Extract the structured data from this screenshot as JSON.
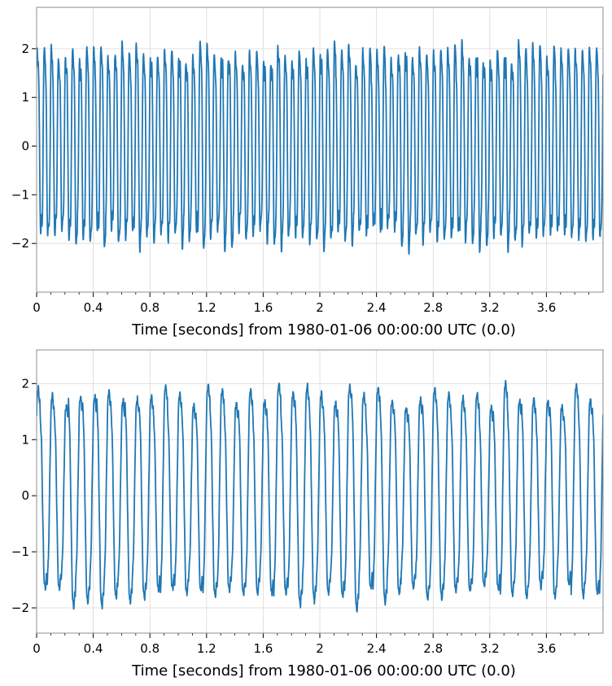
{
  "chart_data": [
    {
      "type": "line",
      "xlabel": "Time [seconds] from 1980-01-06 00:00:00 UTC (0.0)",
      "ylabel": "",
      "xlim": [
        0,
        4
      ],
      "ylim": [
        -3.0,
        2.85
      ],
      "x_ticks": [
        "0",
        "0.4",
        "0.8",
        "1.2",
        "1.6",
        "2",
        "2.4",
        "2.8",
        "3.2",
        "3.6"
      ],
      "y_ticks": [
        "−2",
        "−1",
        "0",
        "1",
        "2"
      ],
      "grid": true,
      "series": [
        {
          "color": "#1f77b4",
          "signal": {
            "main_frequency_hz": 20,
            "main_amplitude": 2.0,
            "harmonic_frequency_hz": 60,
            "harmonic_amplitude": 0.35,
            "peak_range": [
              1.8,
              2.6
            ],
            "trough_range": [
              -2.7,
              -1.6
            ]
          }
        }
      ]
    },
    {
      "type": "line",
      "xlabel": "Time [seconds] from 1980-01-06 00:00:00 UTC (0.0)",
      "ylabel": "",
      "xlim": [
        0,
        4
      ],
      "ylim": [
        -2.45,
        2.6
      ],
      "x_ticks": [
        "0",
        "0.4",
        "0.8",
        "1.2",
        "1.6",
        "2",
        "2.4",
        "2.8",
        "3.2",
        "3.6"
      ],
      "y_ticks": [
        "−2",
        "−1",
        "0",
        "1",
        "2"
      ],
      "grid": true,
      "series": [
        {
          "color": "#1f77b4",
          "signal": {
            "main_frequency_hz": 10,
            "main_amplitude": 1.9,
            "harmonic_frequency_hz": 30,
            "harmonic_amplitude": 0.25,
            "peak_range": [
              1.7,
              2.35
            ],
            "trough_range": [
              -2.25,
              -1.6
            ]
          }
        }
      ]
    }
  ]
}
